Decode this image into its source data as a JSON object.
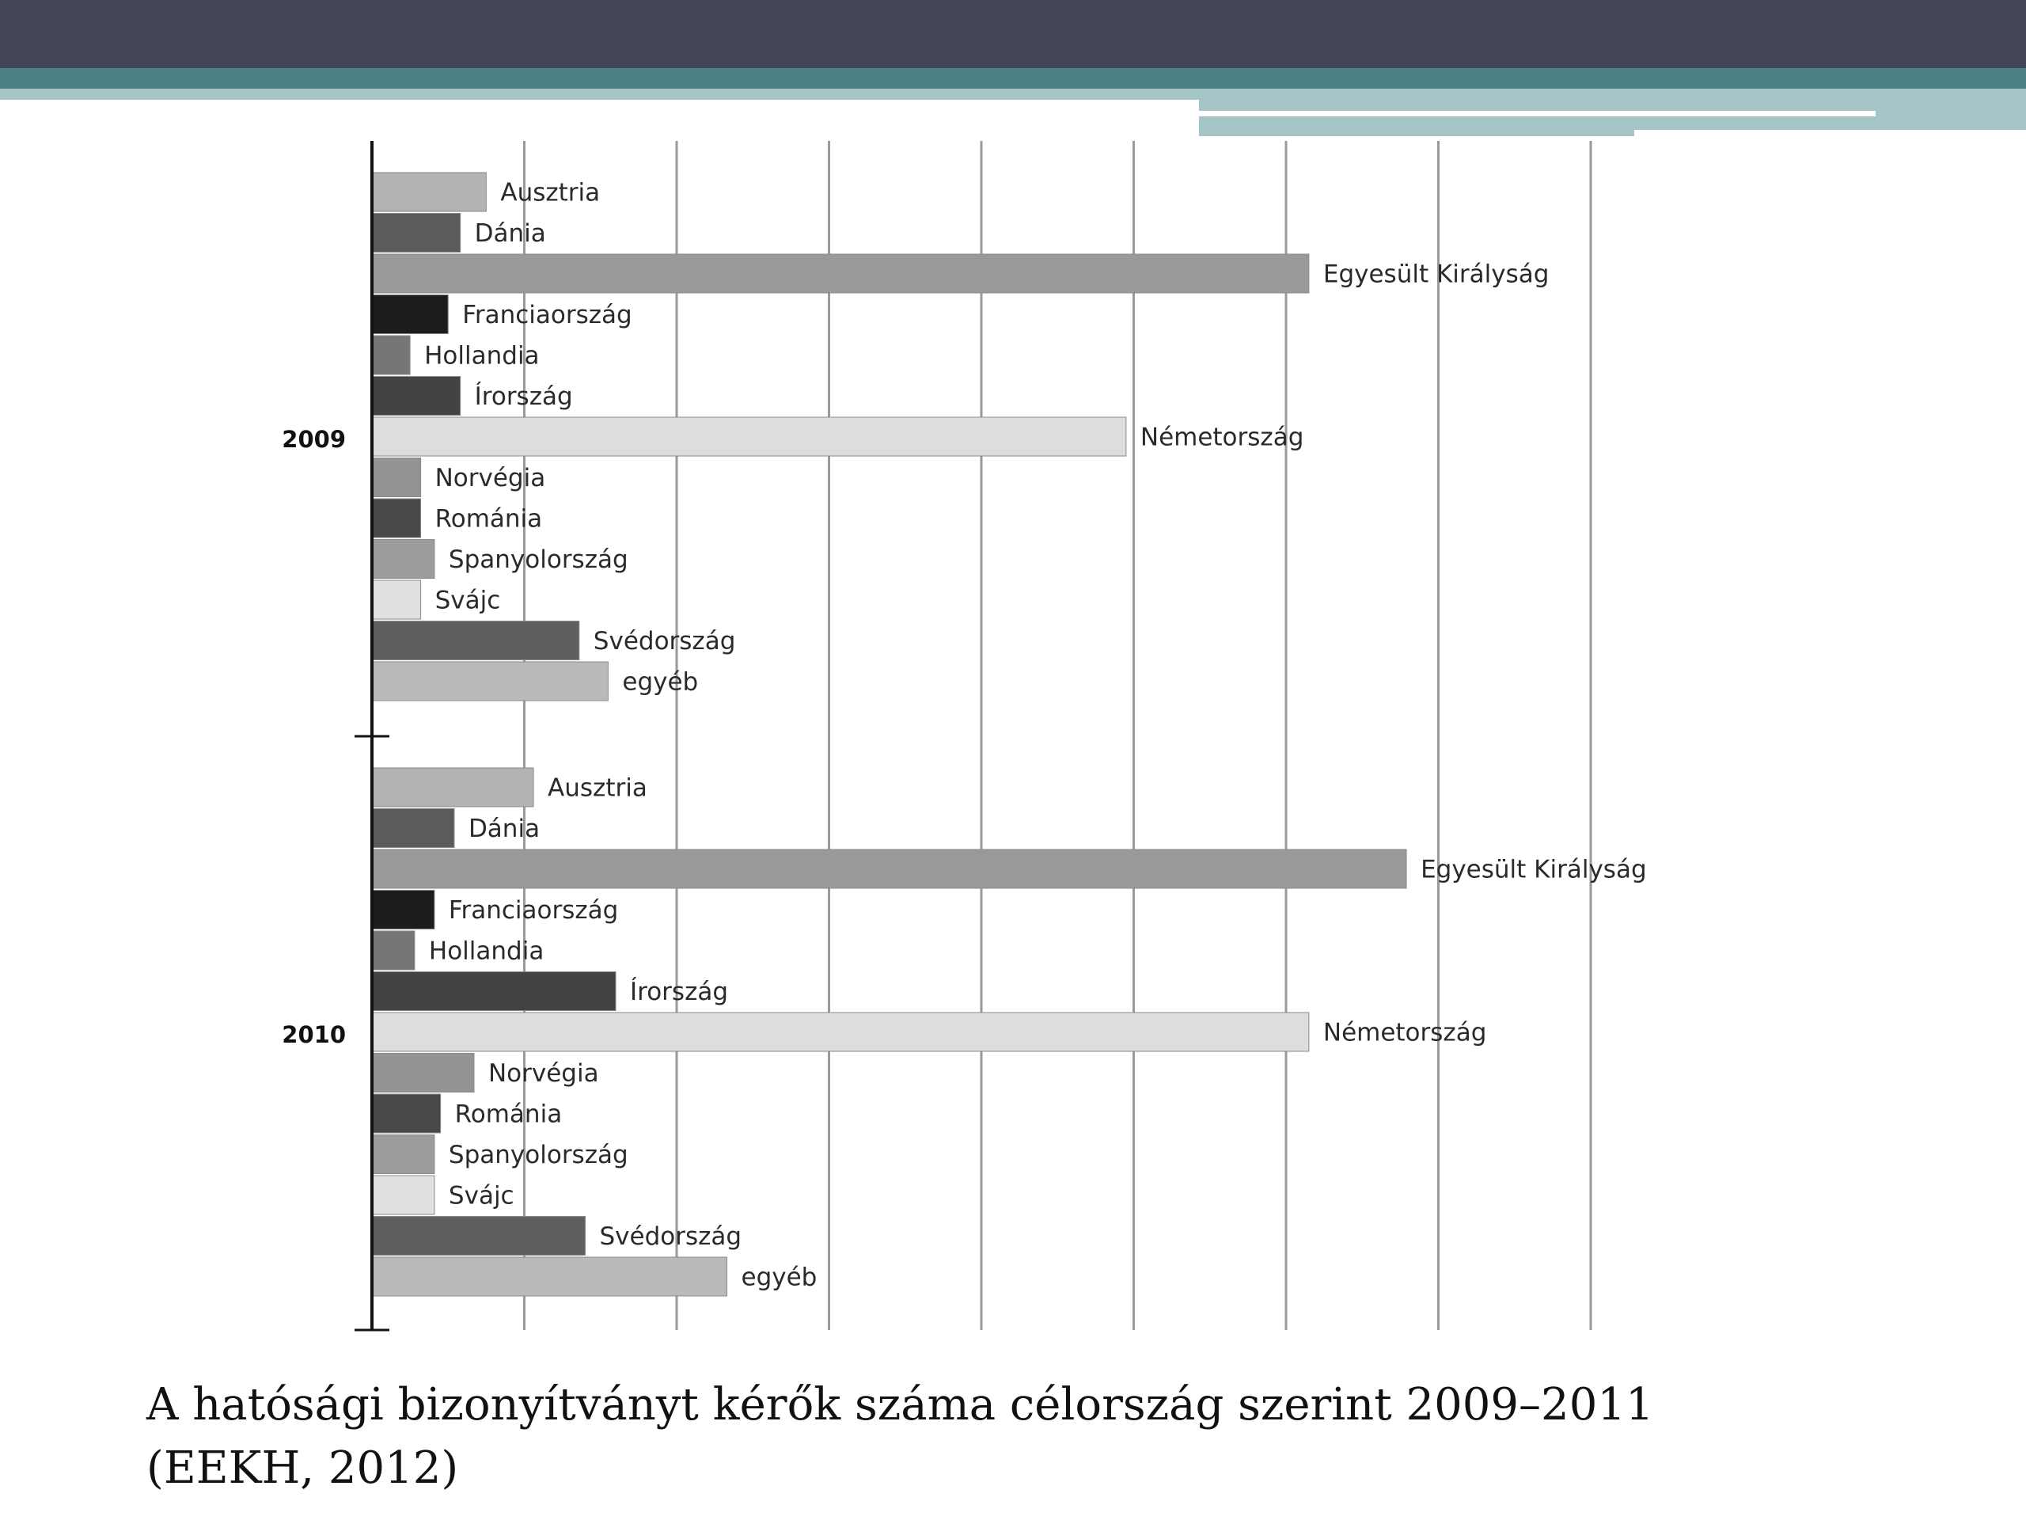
{
  "slide": {
    "caption_line1": "A hatósági bizonyítványt kérők száma célország szerint 2009–2011",
    "caption_line2": "(EEKH, 2012)"
  },
  "colors": {
    "header_dark": "#424458",
    "header_teal": "#4a8286",
    "header_light": "#a5c4c6"
  },
  "chart_data": {
    "type": "bar",
    "orientation": "horizontal",
    "xlim": [
      0,
      8
    ],
    "grid": true,
    "legend": "none",
    "groups": [
      {
        "name": "2009",
        "bars": [
          {
            "label": "Ausztria",
            "value": 0.75,
            "color": "#b3b3b3"
          },
          {
            "label": "Dánia",
            "value": 0.58,
            "color": "#5b5b5b"
          },
          {
            "label": "Egyesült Királyság",
            "value": 6.15,
            "color": "#999999"
          },
          {
            "label": "Franciaország",
            "value": 0.5,
            "color": "#1c1c1c"
          },
          {
            "label": "Hollandia",
            "value": 0.25,
            "color": "#767676"
          },
          {
            "label": "Írország",
            "value": 0.58,
            "color": "#434343"
          },
          {
            "label": "Németország",
            "value": 4.95,
            "color": "#dddddd"
          },
          {
            "label": "Norvégia",
            "value": 0.32,
            "color": "#939393"
          },
          {
            "label": "Románia",
            "value": 0.32,
            "color": "#484848"
          },
          {
            "label": "Spanyolország",
            "value": 0.41,
            "color": "#9c9c9c"
          },
          {
            "label": "Svájc",
            "value": 0.32,
            "color": "#e0e0e0"
          },
          {
            "label": "Svédország",
            "value": 1.36,
            "color": "#5f5f5f"
          },
          {
            "label": "egyéb",
            "value": 1.55,
            "color": "#bababa"
          }
        ]
      },
      {
        "name": "2010",
        "bars": [
          {
            "label": "Ausztria",
            "value": 1.06,
            "color": "#b3b3b3"
          },
          {
            "label": "Dánia",
            "value": 0.54,
            "color": "#5b5b5b"
          },
          {
            "label": "Egyesült Királyság",
            "value": 6.79,
            "color": "#999999"
          },
          {
            "label": "Franciaország",
            "value": 0.41,
            "color": "#1c1c1c"
          },
          {
            "label": "Hollandia",
            "value": 0.28,
            "color": "#767676"
          },
          {
            "label": "Írország",
            "value": 1.6,
            "color": "#434343"
          },
          {
            "label": "Németország",
            "value": 6.15,
            "color": "#dddddd"
          },
          {
            "label": "Norvégia",
            "value": 0.67,
            "color": "#939393"
          },
          {
            "label": "Románia",
            "value": 0.45,
            "color": "#484848"
          },
          {
            "label": "Spanyolország",
            "value": 0.41,
            "color": "#9c9c9c"
          },
          {
            "label": "Svájc",
            "value": 0.41,
            "color": "#e0e0e0"
          },
          {
            "label": "Svédország",
            "value": 1.4,
            "color": "#5f5f5f"
          },
          {
            "label": "egyéb",
            "value": 2.33,
            "color": "#bababa"
          }
        ]
      }
    ]
  }
}
